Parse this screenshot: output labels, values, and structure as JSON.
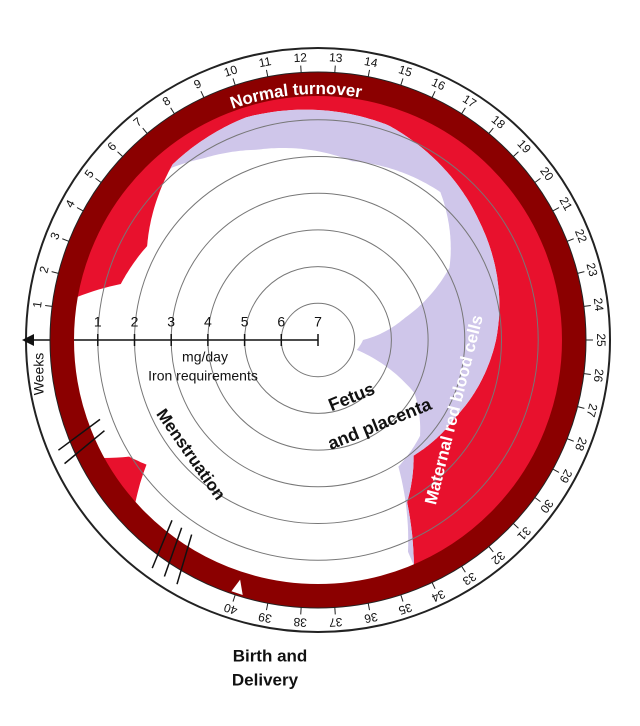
{
  "ring_label": "Normal turnover",
  "regions": {
    "maternal": "Maternal red blood cells",
    "fetus": [
      "Fetus",
      "and placenta"
    ],
    "menstruation": "Menstruation"
  },
  "scale": {
    "values": [
      1,
      2,
      3,
      4,
      5,
      6,
      7
    ],
    "unit": "mg/day",
    "label": "Iron requirements"
  },
  "weeks": {
    "label": "Weeks",
    "numbers": [
      1,
      2,
      3,
      4,
      5,
      6,
      7,
      8,
      9,
      10,
      11,
      12,
      13,
      14,
      15,
      16,
      17,
      18,
      19,
      20,
      21,
      22,
      23,
      24,
      25,
      26,
      27,
      28,
      29,
      30,
      31,
      32,
      33,
      34,
      35,
      36,
      37,
      38,
      39,
      40
    ]
  },
  "event": [
    "Birth and",
    "Delivery"
  ]
}
